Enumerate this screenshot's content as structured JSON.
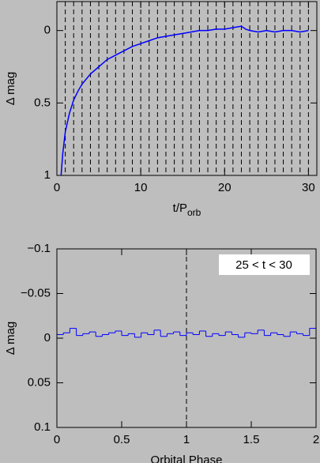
{
  "chart_data": [
    {
      "type": "line",
      "ylabel": "Δ mag",
      "xlabel": "t/P",
      "xlabel_sub": "orb",
      "x": [
        0.5,
        0.7,
        1,
        1.5,
        2,
        2.5,
        3,
        4,
        5,
        6,
        7,
        8,
        9,
        10,
        11,
        12,
        13,
        14,
        15,
        16,
        17,
        18,
        19,
        20,
        21,
        22,
        22.5,
        23,
        24,
        25,
        26,
        27,
        28,
        29,
        30
      ],
      "values": [
        1.0,
        0.85,
        0.7,
        0.57,
        0.48,
        0.42,
        0.37,
        0.3,
        0.25,
        0.2,
        0.17,
        0.14,
        0.11,
        0.09,
        0.07,
        0.05,
        0.04,
        0.03,
        0.02,
        0.01,
        0.0,
        0.0,
        -0.01,
        -0.01,
        -0.02,
        -0.03,
        -0.01,
        0.0,
        0.01,
        0.0,
        0.01,
        0.0,
        0.0,
        0.01,
        0.0
      ],
      "color": "#0000ff",
      "xlim": [
        0,
        31
      ],
      "xticks": [
        0,
        10,
        20,
        30
      ],
      "ylim": [
        1,
        -0.2
      ],
      "yticks": [
        0,
        0.5,
        1
      ],
      "vlines": [
        1,
        2,
        3,
        4,
        5,
        6,
        7,
        8,
        9,
        10,
        11,
        12,
        13,
        14,
        15,
        16,
        17,
        18,
        19,
        20,
        21,
        22,
        23,
        24,
        25,
        26,
        27,
        28,
        29,
        30
      ]
    },
    {
      "type": "histogram",
      "ylabel": "Δ mag",
      "xlabel": "Orbital Phase",
      "annotation": "25 < t < 30",
      "bins": [
        0,
        0.05,
        0.1,
        0.15,
        0.2,
        0.25,
        0.3,
        0.35,
        0.4,
        0.45,
        0.5,
        0.55,
        0.6,
        0.65,
        0.7,
        0.75,
        0.8,
        0.85,
        0.9,
        0.95,
        1,
        1.05,
        1.1,
        1.15,
        1.2,
        1.25,
        1.3,
        1.35,
        1.4,
        1.45,
        1.5,
        1.55,
        1.6,
        1.65,
        1.7,
        1.75,
        1.8,
        1.85,
        1.9,
        1.95,
        2
      ],
      "values": [
        -0.004,
        -0.006,
        -0.011,
        -0.003,
        -0.005,
        -0.007,
        -0.002,
        -0.004,
        -0.006,
        -0.008,
        -0.003,
        -0.005,
        -0.001,
        -0.006,
        -0.004,
        -0.009,
        -0.002,
        -0.005,
        -0.007,
        -0.003,
        -0.006,
        -0.004,
        -0.008,
        -0.002,
        -0.005,
        -0.003,
        -0.007,
        -0.004,
        -0.001,
        -0.006,
        -0.005,
        -0.009,
        -0.003,
        -0.006,
        -0.004,
        -0.002,
        -0.007,
        -0.005,
        -0.003,
        -0.011
      ],
      "color": "#0000ff",
      "xlim": [
        0,
        2
      ],
      "xticks": [
        0,
        0.5,
        1,
        1.5,
        2
      ],
      "ylim": [
        0.1,
        -0.1
      ],
      "yticks": [
        {
          "value": -0.1,
          "label": "−0.1"
        },
        {
          "value": -0.05,
          "label": "−0.05"
        },
        0,
        0.05,
        0.1
      ],
      "vlines": [
        1
      ]
    }
  ]
}
